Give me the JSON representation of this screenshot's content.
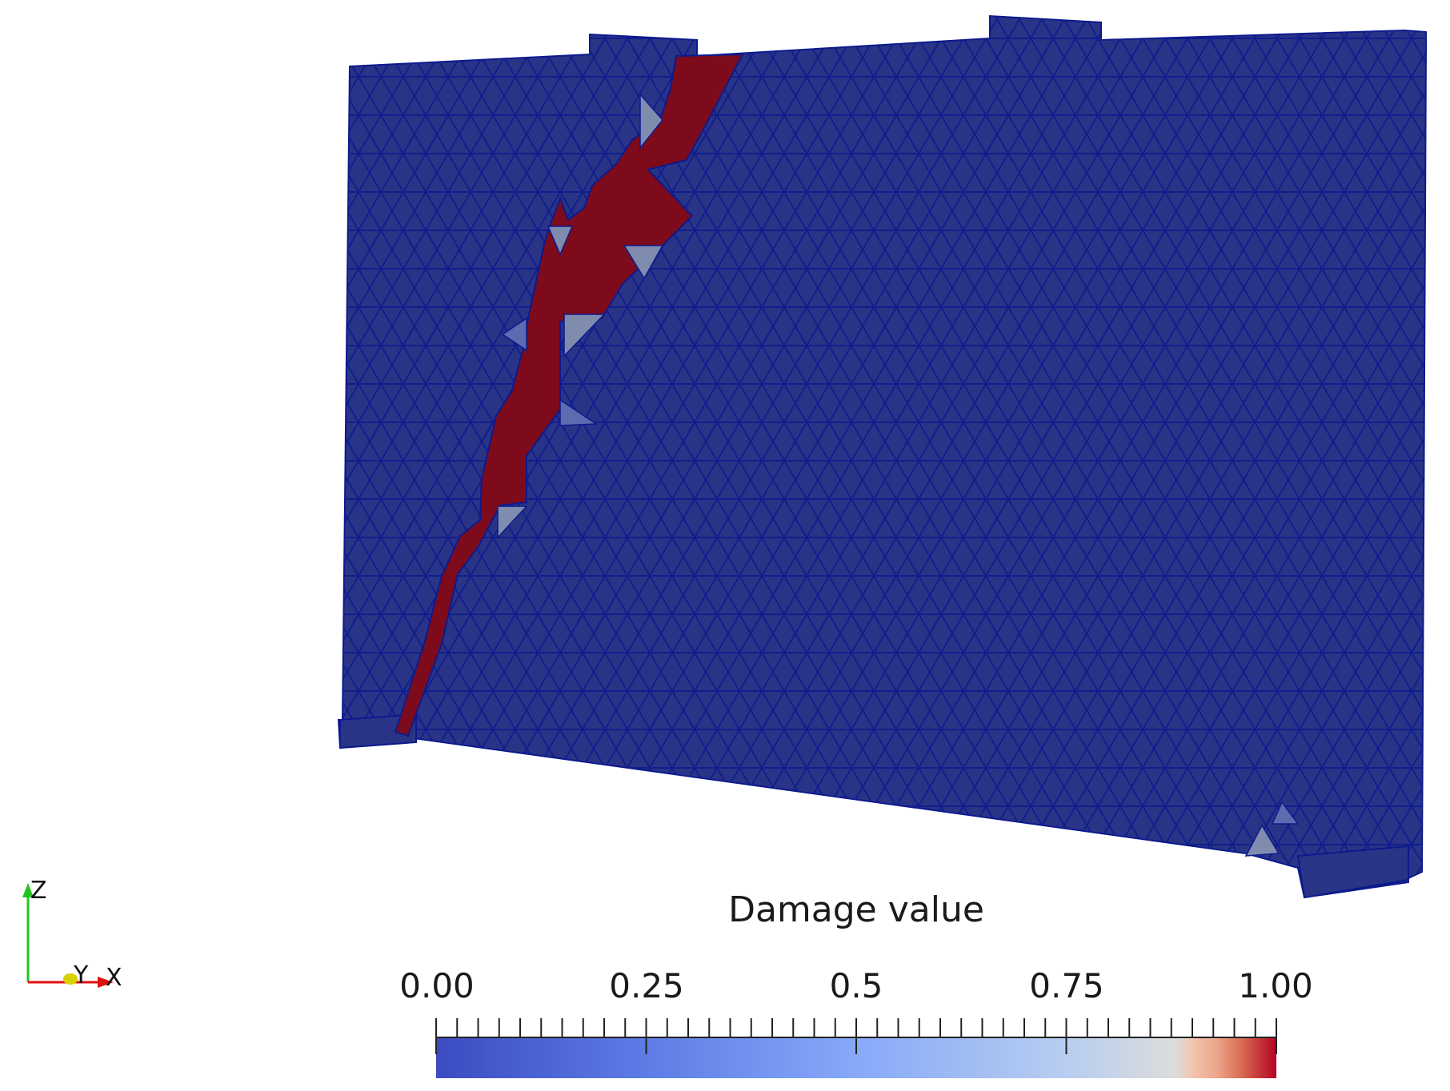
{
  "colors": {
    "mesh_fill": "#2a3486",
    "mesh_edge": "#0c1a8e",
    "damage_high": "#7d0b1c",
    "damage_mid": "#7f8cae",
    "damage_low": "#5d6bb0"
  },
  "legend": {
    "title": "Damage value",
    "ticks": [
      "0.00",
      "0.25",
      "0.5",
      "0.75",
      "1.00"
    ],
    "range": [
      0,
      1
    ]
  },
  "axes_triad": {
    "z_label": "Z",
    "y_label": "Y",
    "x_label": "X",
    "z_color": "#22c422",
    "y_color": "#d8d000",
    "x_color": "#e01010"
  }
}
